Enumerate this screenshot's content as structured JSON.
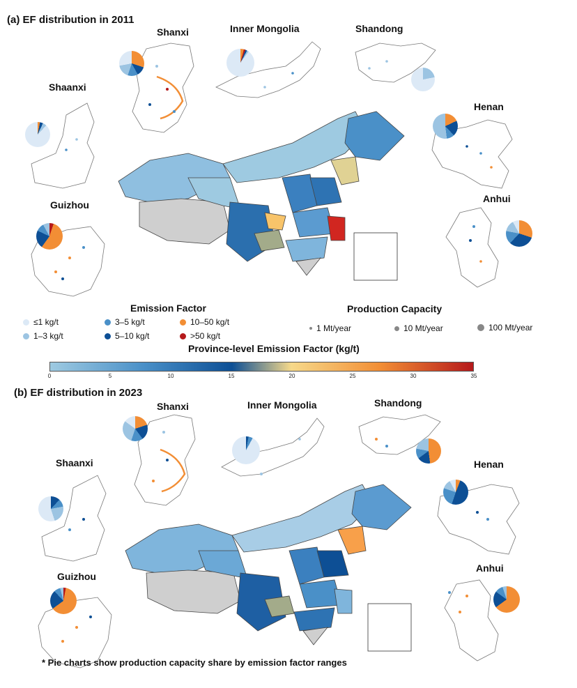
{
  "panel_a": {
    "title": "(a) EF distribution in 2011",
    "provinces": [
      "Shanxi",
      "Inner Mongolia",
      "Shandong",
      "Shaanxi",
      "Henan",
      "Guizhou",
      "Anhui"
    ]
  },
  "panel_b": {
    "title": "(b) EF distribution in 2023",
    "provinces": [
      "Shanxi",
      "Inner Mongolia",
      "Shandong",
      "Shaanxi",
      "Henan",
      "Guizhou",
      "Anhui"
    ]
  },
  "legend": {
    "ef_title": "Emission Factor",
    "ef_items": [
      {
        "label": "≤1 kg/t",
        "color": "#dce9f6"
      },
      {
        "label": "1–3 kg/t",
        "color": "#9cc4e2"
      },
      {
        "label": "3–5 kg/t",
        "color": "#4a90c8"
      },
      {
        "label": "5–10 kg/t",
        "color": "#0d4f95"
      },
      {
        "label": "10–50 kg/t",
        "color": "#f28e35"
      },
      {
        "label": ">50 kg/t",
        "color": "#b5191b"
      }
    ],
    "cap_title": "Production Capacity",
    "cap_items": [
      {
        "label": "1 Mt/year"
      },
      {
        "label": "10 Mt/year"
      },
      {
        "label": "100 Mt/year"
      }
    ]
  },
  "colorbar": {
    "title": "Province-level Emission Factor (kg/t)",
    "ticks": [
      "0",
      "5",
      "10",
      "15",
      "20",
      "25",
      "30",
      "35"
    ],
    "colors": [
      "#9ecae1",
      "#4a90c8",
      "#0d4f95",
      "#f6d98a",
      "#f28e35",
      "#b5191b"
    ]
  },
  "footnote": "* Pie charts show production capacity share by emission factor ranges"
}
